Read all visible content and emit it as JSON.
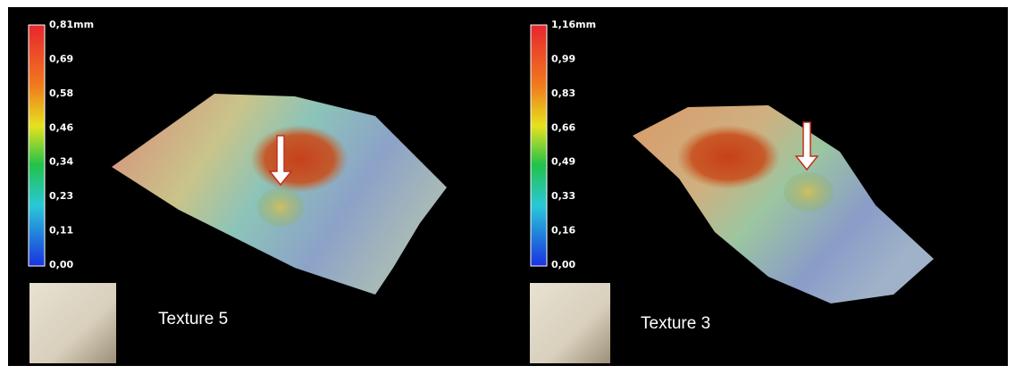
{
  "panels": [
    {
      "label": "Texture 5",
      "scale": [
        "0,81mm",
        "0,69",
        "0,58",
        "0,46",
        "0,34",
        "0,23",
        "0,11",
        "0,00"
      ]
    },
    {
      "label": "Texture 3",
      "scale": [
        "1,16mm",
        "0,99",
        "0,83",
        "0,66",
        "0,49",
        "0,33",
        "0,16",
        "0,00"
      ]
    }
  ]
}
